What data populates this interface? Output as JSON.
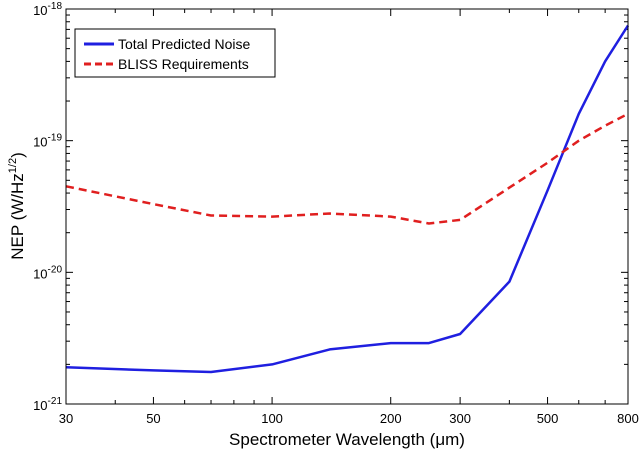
{
  "chart_data": {
    "type": "line",
    "xscale": "log",
    "yscale": "log",
    "xlim": [
      30,
      800
    ],
    "ylim": [
      1e-21,
      1e-18
    ],
    "xlabel": "Spectrometer Wavelength (μm)",
    "ylabel_main": "NEP (W/Hz",
    "ylabel_sup": "1/2",
    "ylabel_close": ")",
    "x_ticks": [
      {
        "value": 30,
        "label": "30"
      },
      {
        "value": 50,
        "label": "50"
      },
      {
        "value": 100,
        "label": "100"
      },
      {
        "value": 200,
        "label": "200"
      },
      {
        "value": 300,
        "label": "300"
      },
      {
        "value": 500,
        "label": "500"
      },
      {
        "value": 800,
        "label": "800"
      }
    ],
    "y_ticks": [
      {
        "value": 1e-21,
        "base": "10",
        "exp": "-21"
      },
      {
        "value": 1e-20,
        "base": "10",
        "exp": "-20"
      },
      {
        "value": 1e-19,
        "base": "10",
        "exp": "-19"
      },
      {
        "value": 1e-18,
        "base": "10",
        "exp": "-18"
      }
    ],
    "legend_position": "top-left",
    "series": [
      {
        "name": "Total Predicted Noise",
        "color": "#1f1fe0",
        "dash": "solid",
        "x": [
          30,
          50,
          70,
          100,
          140,
          200,
          250,
          300,
          400,
          500,
          600,
          700,
          800
        ],
        "y": [
          1.9e-21,
          1.8e-21,
          1.75e-21,
          2e-21,
          2.6e-21,
          2.9e-21,
          2.9e-21,
          3.4e-21,
          8.5e-21,
          4.2e-20,
          1.6e-19,
          4e-19,
          7.5e-19
        ]
      },
      {
        "name": "BLISS Requirements",
        "color": "#e01f1f",
        "dash": "dashed",
        "x": [
          30,
          50,
          70,
          100,
          140,
          200,
          250,
          300,
          400,
          500,
          600,
          700,
          800
        ],
        "y": [
          4.5e-20,
          3.3e-20,
          2.7e-20,
          2.65e-20,
          2.8e-20,
          2.65e-20,
          2.35e-20,
          2.5e-20,
          4.4e-20,
          6.8e-20,
          1e-19,
          1.3e-19,
          1.6e-19
        ]
      }
    ]
  }
}
